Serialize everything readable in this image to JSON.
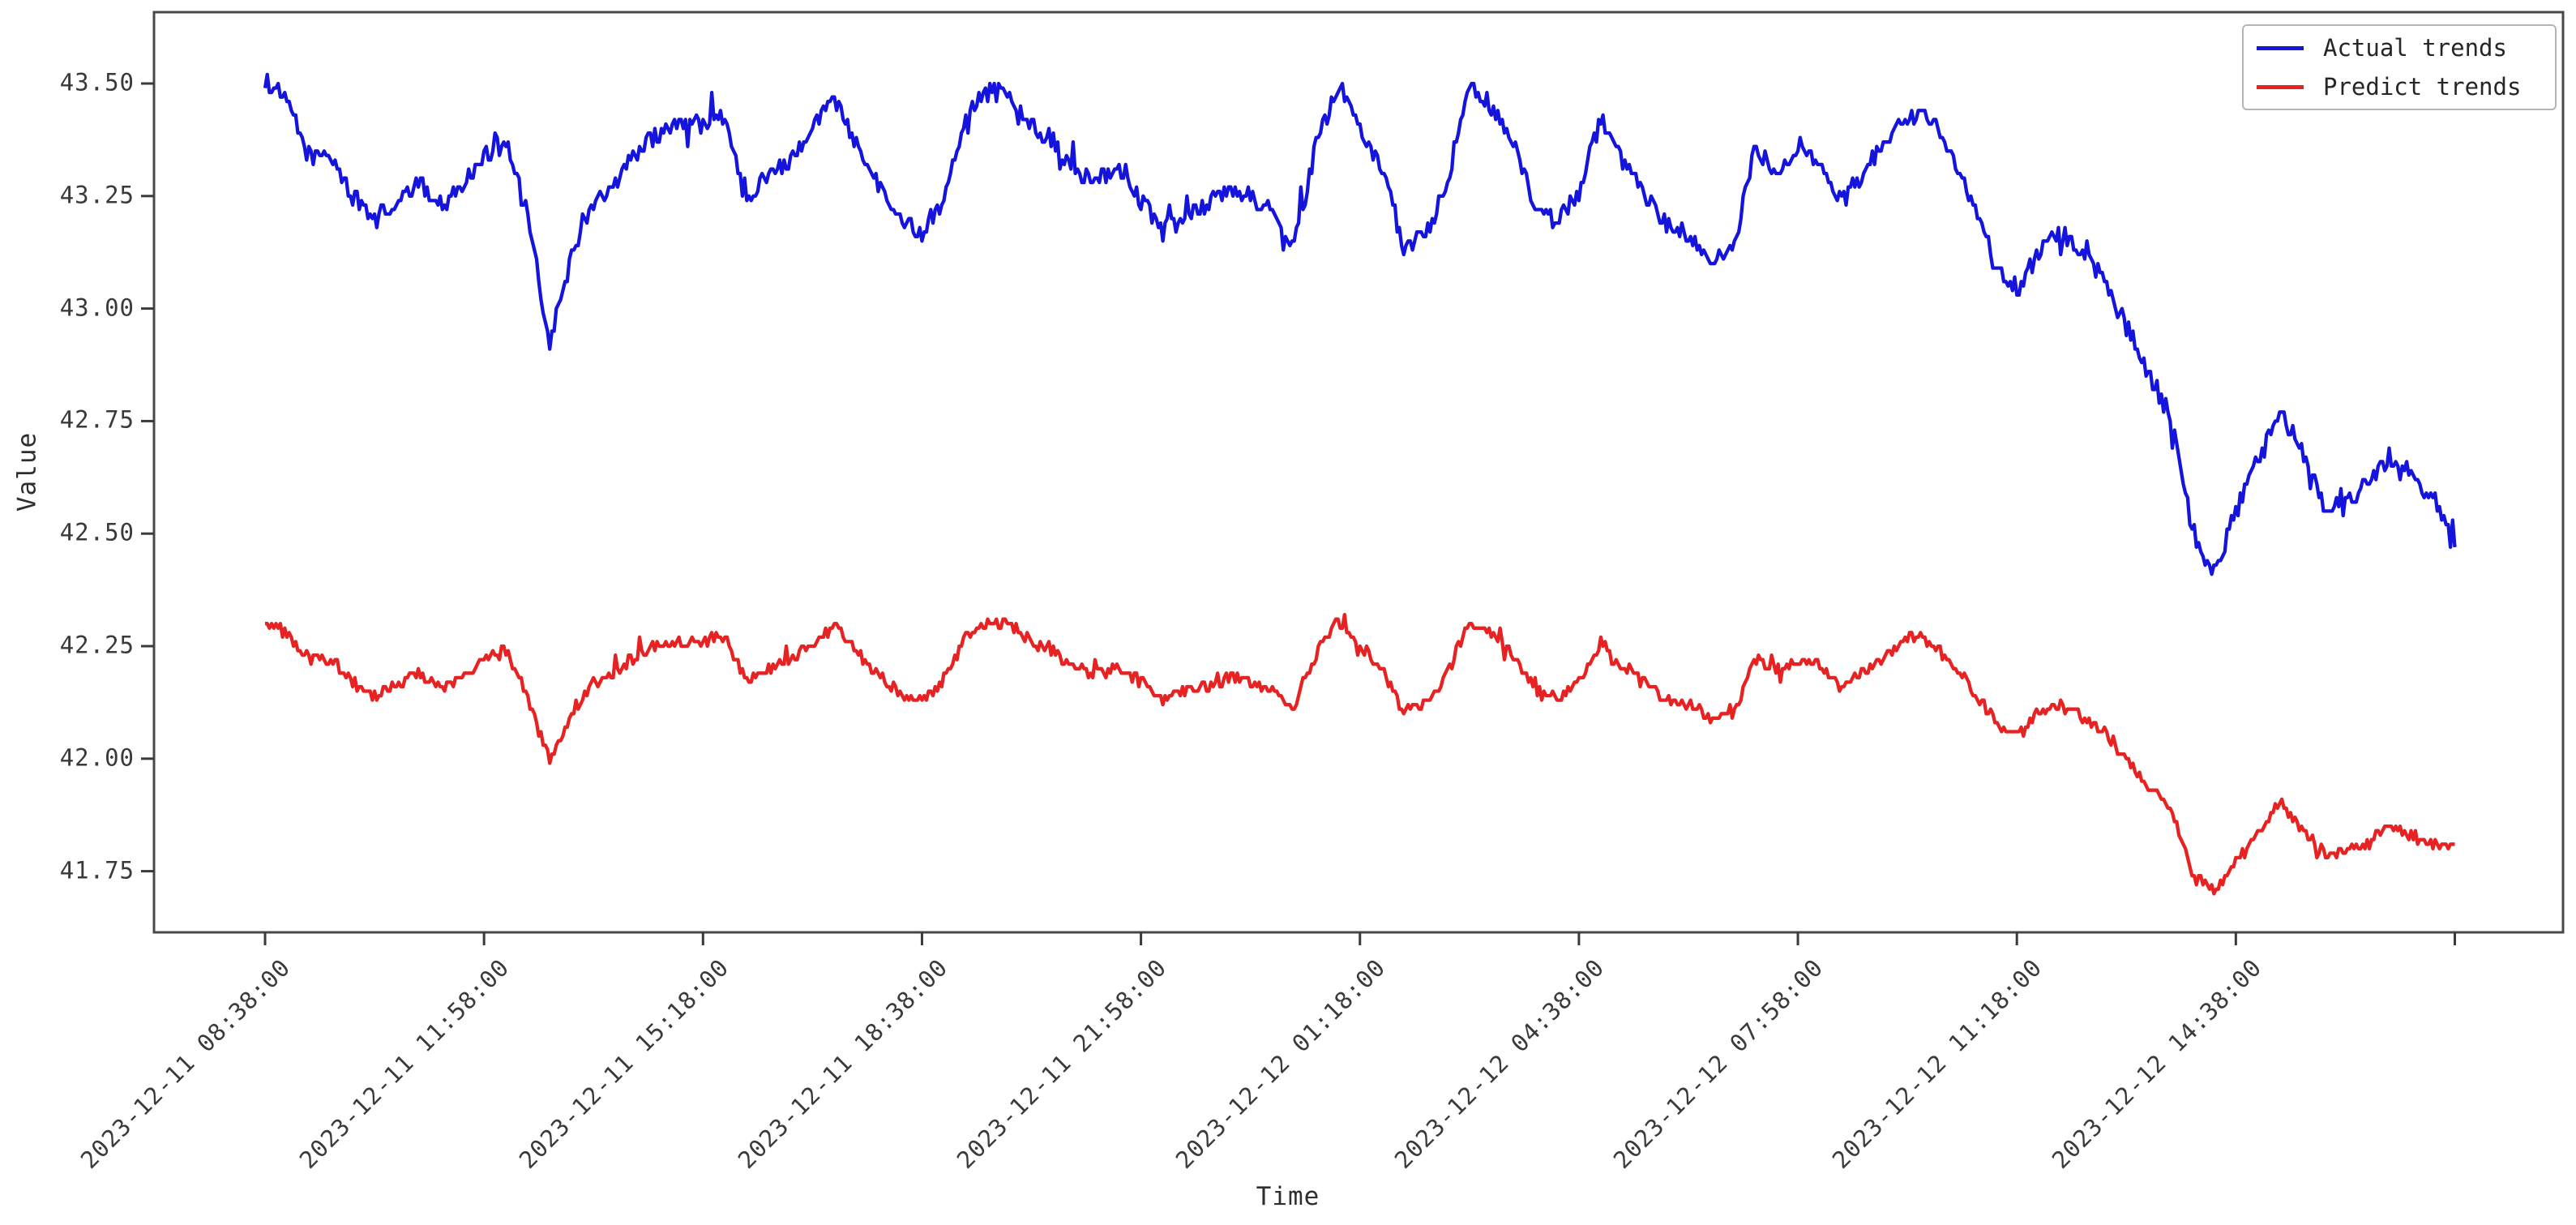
{
  "figure": {
    "background_color": "#ffffff",
    "spine_color": "#484848",
    "tick_color": "#3a3a3a"
  },
  "chart_data": {
    "type": "line",
    "title": "",
    "xlabel": "Time",
    "ylabel": "Value",
    "grid": false,
    "legend_position": "upper right",
    "ylim": [
      41.61,
      43.66
    ],
    "yticks": [
      43.5,
      43.25,
      43.0,
      42.75,
      42.5,
      42.25,
      42.0,
      41.75
    ],
    "ytick_labels": [
      "43.50",
      "43.25",
      "43.00",
      "42.75",
      "42.50",
      "42.25",
      "42.00",
      "41.75"
    ],
    "x_tick_labels": [
      "2023-12-11 08:38:00",
      "2023-12-11 11:58:00",
      "2023-12-11 15:18:00",
      "2023-12-11 18:38:00",
      "2023-12-11 21:58:00",
      "2023-12-12 01:18:00",
      "2023-12-12 04:38:00",
      "2023-12-12 07:58:00",
      "2023-12-12 11:18:00",
      "2023-12-12 14:38:00",
      ""
    ],
    "x_minutes_between_ticks": 200,
    "x_total_minutes": 2000,
    "sample_step_minutes": 20,
    "series": [
      {
        "name": "Actual trends",
        "color": "#1414dd",
        "noise_amplitude": 0.02,
        "values": [
          43.51,
          43.46,
          43.34,
          43.34,
          43.25,
          43.2,
          43.23,
          43.28,
          43.23,
          43.27,
          43.34,
          43.37,
          43.2,
          42.92,
          43.12,
          43.24,
          43.28,
          43.35,
          43.39,
          43.41,
          43.41,
          43.42,
          43.25,
          43.3,
          43.33,
          43.41,
          43.46,
          43.37,
          43.28,
          43.2,
          43.17,
          43.25,
          43.43,
          43.48,
          43.48,
          43.41,
          43.37,
          43.3,
          43.29,
          43.3,
          43.24,
          43.17,
          43.21,
          43.23,
          43.26,
          43.25,
          43.21,
          43.14,
          43.36,
          43.5,
          43.4,
          43.31,
          43.14,
          43.16,
          43.29,
          43.49,
          43.45,
          43.37,
          43.22,
          43.19,
          43.26,
          43.42,
          43.32,
          43.25,
          43.19,
          43.16,
          43.11,
          43.12,
          43.35,
          43.31,
          43.35,
          43.32,
          43.24,
          43.3,
          43.37,
          43.43,
          43.42,
          43.35,
          43.23,
          43.1,
          43.04,
          43.13,
          43.17,
          43.12,
          43.06,
          42.96,
          42.86,
          42.76,
          42.51,
          42.41,
          42.55,
          42.66,
          42.77,
          42.68,
          42.57,
          42.56,
          42.61,
          42.67,
          42.63,
          42.58,
          42.47
        ]
      },
      {
        "name": "Predict trends",
        "color": "#e62222",
        "noise_amplitude": 0.012,
        "values": [
          42.31,
          42.28,
          42.22,
          42.22,
          42.17,
          42.14,
          42.16,
          42.19,
          42.16,
          42.18,
          42.22,
          42.24,
          42.14,
          41.99,
          42.1,
          42.17,
          42.19,
          42.23,
          42.25,
          42.26,
          42.26,
          42.27,
          42.17,
          42.2,
          42.22,
          42.26,
          42.29,
          42.24,
          42.19,
          42.14,
          42.13,
          42.17,
          42.27,
          42.3,
          42.3,
          42.26,
          42.24,
          42.2,
          42.19,
          42.2,
          42.17,
          42.13,
          42.15,
          42.16,
          42.18,
          42.17,
          42.15,
          42.11,
          42.23,
          42.31,
          42.25,
          42.2,
          42.11,
          42.12,
          42.19,
          42.3,
          42.28,
          42.23,
          42.15,
          42.13,
          42.17,
          42.26,
          42.2,
          42.17,
          42.13,
          42.12,
          42.09,
          42.09,
          42.22,
          42.2,
          42.22,
          42.21,
          42.16,
          42.19,
          42.23,
          42.27,
          42.26,
          42.22,
          42.15,
          42.08,
          42.05,
          42.1,
          42.12,
          42.09,
          42.06,
          42.0,
          41.94,
          41.89,
          41.75,
          41.7,
          41.77,
          41.83,
          41.9,
          41.85,
          41.79,
          41.79,
          41.81,
          41.85,
          41.83,
          41.81,
          41.8
        ]
      }
    ]
  }
}
